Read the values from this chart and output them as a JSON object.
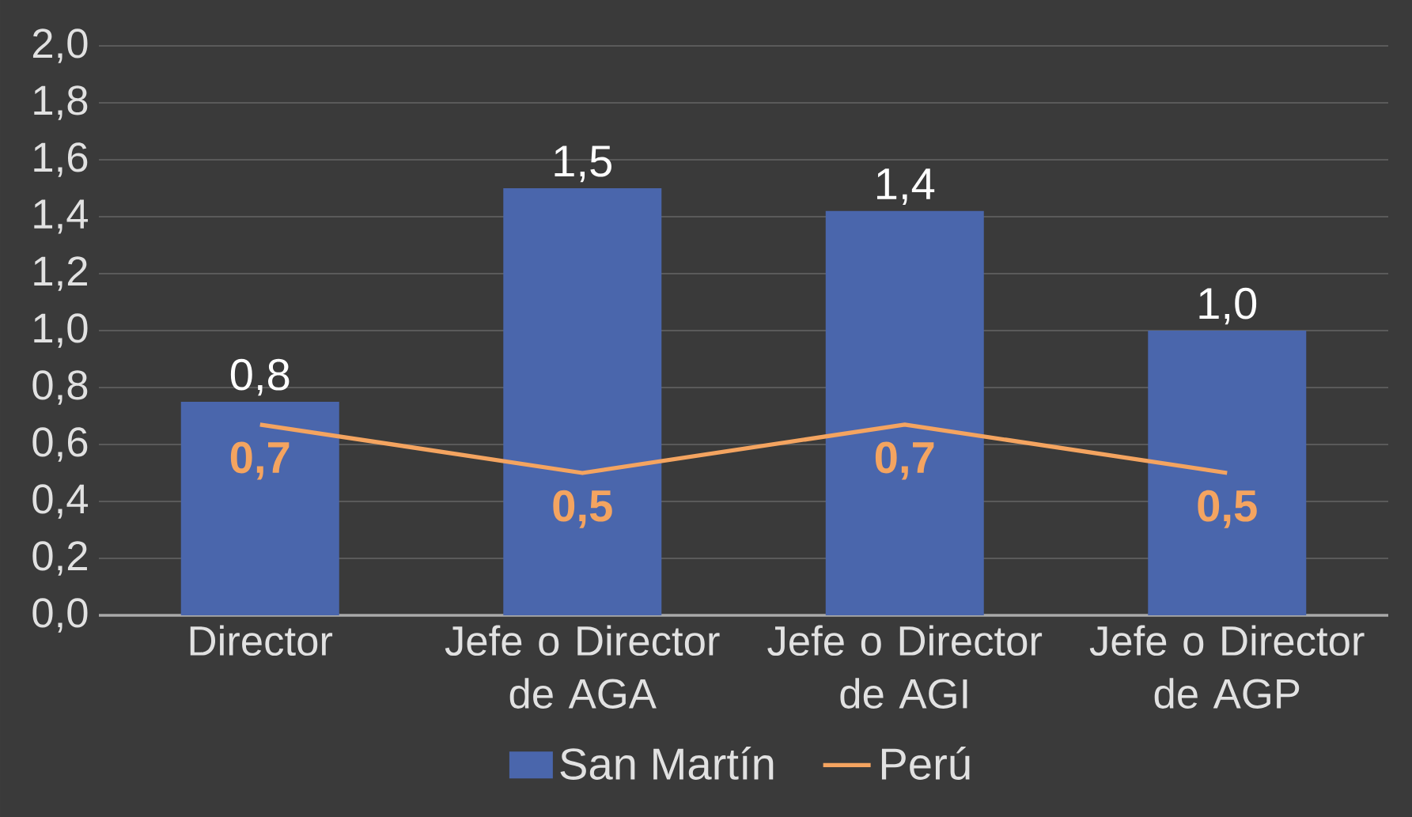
{
  "chart_data": {
    "type": "bar",
    "categories": [
      "Director",
      "Jefe o Director de AGA",
      "Jefe o Director de AGI",
      "Jefe o Director de AGP"
    ],
    "series": [
      {
        "name": "San Martín",
        "color": "#4a66ac",
        "values": [
          0.75,
          1.5,
          1.42,
          1.0
        ],
        "value_labels": [
          "0,8",
          "1,5",
          "1,4",
          "1,0"
        ]
      },
      {
        "name": "Perú",
        "type": "line",
        "color": "#f4a460",
        "values": [
          0.67,
          0.5,
          0.67,
          0.5
        ],
        "value_labels": [
          "0,7",
          "0,5",
          "0,7",
          "0,5"
        ]
      }
    ],
    "ylim": [
      0,
      2
    ],
    "yticks": [
      {
        "value": 0,
        "label": "0,0"
      },
      {
        "value": 0.2,
        "label": "0,2"
      },
      {
        "value": 0.4,
        "label": "0,4"
      },
      {
        "value": 0.6,
        "label": "0,6"
      },
      {
        "value": 0.8,
        "label": "0,8"
      },
      {
        "value": 1.0,
        "label": "1,0"
      },
      {
        "value": 1.2,
        "label": "1,2"
      },
      {
        "value": 1.4,
        "label": "1,4"
      },
      {
        "value": 1.6,
        "label": "1,6"
      },
      {
        "value": 1.8,
        "label": "1,8"
      },
      {
        "value": 2.0,
        "label": "2,0"
      }
    ],
    "grid": "y",
    "legend": "bottom"
  }
}
